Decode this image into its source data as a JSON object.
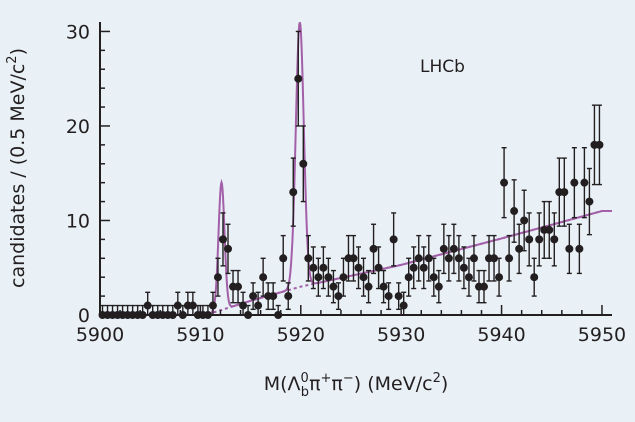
{
  "chart_data": {
    "type": "scatter",
    "experiment_label": "LHCb",
    "xlabel": "M(Λ⁰bπ⁺π⁻) (MeV/c²)",
    "xlabel_parts": {
      "prefix": "M(Λ",
      "sup": "0",
      "sub": "b",
      "mid": "π",
      "plus": "+",
      "pi2": "π",
      "minus": "−",
      "suffix": ") (MeV/c",
      "sq": "2",
      "close": ")"
    },
    "ylabel": "candidates / (0.5 MeV/c²)",
    "ylabel_parts": {
      "main": "candidates / (0.5 MeV/c",
      "sq": "2",
      "close": ")"
    },
    "xlim": [
      5900,
      5951
    ],
    "ylim": [
      0,
      31
    ],
    "x_ticks": [
      "5900",
      "5910",
      "5920",
      "5930",
      "5940",
      "5950"
    ],
    "y_ticks": [
      "0",
      "10",
      "20",
      "30"
    ],
    "grid": false,
    "colors": {
      "fit": "#a35fa8",
      "points": "#231f20",
      "background": "#e9f1f6"
    },
    "points": [
      {
        "x": 5900.25,
        "y": 0,
        "err": 1
      },
      {
        "x": 5900.75,
        "y": 0,
        "err": 1
      },
      {
        "x": 5901.25,
        "y": 0,
        "err": 1
      },
      {
        "x": 5901.75,
        "y": 0,
        "err": 1
      },
      {
        "x": 5902.25,
        "y": 0,
        "err": 1
      },
      {
        "x": 5902.75,
        "y": 0,
        "err": 1
      },
      {
        "x": 5903.25,
        "y": 0,
        "err": 1
      },
      {
        "x": 5903.75,
        "y": 0,
        "err": 1
      },
      {
        "x": 5904.25,
        "y": 0,
        "err": 1
      },
      {
        "x": 5904.75,
        "y": 1,
        "err": 1.4
      },
      {
        "x": 5905.25,
        "y": 0,
        "err": 1
      },
      {
        "x": 5905.75,
        "y": 0,
        "err": 1
      },
      {
        "x": 5906.25,
        "y": 0,
        "err": 1
      },
      {
        "x": 5906.75,
        "y": 0,
        "err": 1
      },
      {
        "x": 5907.25,
        "y": 0,
        "err": 1
      },
      {
        "x": 5907.75,
        "y": 1,
        "err": 1.4
      },
      {
        "x": 5908.25,
        "y": 0,
        "err": 1
      },
      {
        "x": 5908.75,
        "y": 1,
        "err": 1.4
      },
      {
        "x": 5909.25,
        "y": 1,
        "err": 1.4
      },
      {
        "x": 5909.75,
        "y": 0,
        "err": 1
      },
      {
        "x": 5910.25,
        "y": 0,
        "err": 1
      },
      {
        "x": 5910.75,
        "y": 0,
        "err": 1
      },
      {
        "x": 5911.25,
        "y": 1,
        "err": 1.4
      },
      {
        "x": 5911.75,
        "y": 4,
        "err": 2
      },
      {
        "x": 5912.25,
        "y": 8,
        "err": 2.8
      },
      {
        "x": 5912.75,
        "y": 7,
        "err": 2.6
      },
      {
        "x": 5913.25,
        "y": 3,
        "err": 1.7
      },
      {
        "x": 5913.75,
        "y": 3,
        "err": 1.7
      },
      {
        "x": 5914.25,
        "y": 1,
        "err": 1.4
      },
      {
        "x": 5914.75,
        "y": 0,
        "err": 1
      },
      {
        "x": 5915.25,
        "y": 2,
        "err": 1.4
      },
      {
        "x": 5915.75,
        "y": 1,
        "err": 1.4
      },
      {
        "x": 5916.25,
        "y": 4,
        "err": 2
      },
      {
        "x": 5916.75,
        "y": 2,
        "err": 1.4
      },
      {
        "x": 5917.25,
        "y": 2,
        "err": 1.4
      },
      {
        "x": 5917.75,
        "y": 0,
        "err": 1
      },
      {
        "x": 5918.25,
        "y": 6,
        "err": 2.4
      },
      {
        "x": 5918.75,
        "y": 2,
        "err": 1.4
      },
      {
        "x": 5919.25,
        "y": 13,
        "err": 3.6
      },
      {
        "x": 5919.75,
        "y": 25,
        "err": 5
      },
      {
        "x": 5920.25,
        "y": 16,
        "err": 4
      },
      {
        "x": 5920.75,
        "y": 6,
        "err": 2.4
      },
      {
        "x": 5921.25,
        "y": 5,
        "err": 2.2
      },
      {
        "x": 5921.75,
        "y": 4,
        "err": 2
      },
      {
        "x": 5922.25,
        "y": 5,
        "err": 2.2
      },
      {
        "x": 5922.75,
        "y": 4,
        "err": 2
      },
      {
        "x": 5923.25,
        "y": 3,
        "err": 1.7
      },
      {
        "x": 5923.75,
        "y": 2,
        "err": 1.4
      },
      {
        "x": 5924.25,
        "y": 4,
        "err": 2
      },
      {
        "x": 5924.75,
        "y": 6,
        "err": 2.4
      },
      {
        "x": 5925.25,
        "y": 6,
        "err": 2.4
      },
      {
        "x": 5925.75,
        "y": 5,
        "err": 2.2
      },
      {
        "x": 5926.25,
        "y": 4,
        "err": 2
      },
      {
        "x": 5926.75,
        "y": 3,
        "err": 1.7
      },
      {
        "x": 5927.25,
        "y": 7,
        "err": 2.6
      },
      {
        "x": 5927.75,
        "y": 5,
        "err": 2.2
      },
      {
        "x": 5928.25,
        "y": 3,
        "err": 1.7
      },
      {
        "x": 5928.75,
        "y": 2,
        "err": 1.4
      },
      {
        "x": 5929.25,
        "y": 8,
        "err": 2.8
      },
      {
        "x": 5929.75,
        "y": 2,
        "err": 1.4
      },
      {
        "x": 5930.25,
        "y": 1,
        "err": 1.4
      },
      {
        "x": 5930.75,
        "y": 4,
        "err": 2
      },
      {
        "x": 5931.25,
        "y": 5,
        "err": 2.2
      },
      {
        "x": 5931.75,
        "y": 6,
        "err": 2.4
      },
      {
        "x": 5932.25,
        "y": 5,
        "err": 2.2
      },
      {
        "x": 5932.75,
        "y": 6,
        "err": 2.4
      },
      {
        "x": 5933.25,
        "y": 4,
        "err": 2
      },
      {
        "x": 5933.75,
        "y": 3,
        "err": 1.7
      },
      {
        "x": 5934.25,
        "y": 7,
        "err": 2.6
      },
      {
        "x": 5934.75,
        "y": 6,
        "err": 2.4
      },
      {
        "x": 5935.25,
        "y": 7,
        "err": 2.6
      },
      {
        "x": 5935.75,
        "y": 6,
        "err": 2.4
      },
      {
        "x": 5936.25,
        "y": 5,
        "err": 2.2
      },
      {
        "x": 5936.75,
        "y": 4,
        "err": 2
      },
      {
        "x": 5937.25,
        "y": 6,
        "err": 2.4
      },
      {
        "x": 5937.75,
        "y": 3,
        "err": 1.7
      },
      {
        "x": 5938.25,
        "y": 3,
        "err": 1.7
      },
      {
        "x": 5938.75,
        "y": 6,
        "err": 2.4
      },
      {
        "x": 5939.25,
        "y": 6,
        "err": 2.4
      },
      {
        "x": 5939.75,
        "y": 4,
        "err": 2
      },
      {
        "x": 5940.25,
        "y": 14,
        "err": 3.7
      },
      {
        "x": 5940.75,
        "y": 6,
        "err": 2.4
      },
      {
        "x": 5941.25,
        "y": 11,
        "err": 3.3
      },
      {
        "x": 5941.75,
        "y": 7,
        "err": 2.6
      },
      {
        "x": 5942.25,
        "y": 10,
        "err": 3.2
      },
      {
        "x": 5942.75,
        "y": 8,
        "err": 2.8
      },
      {
        "x": 5943.25,
        "y": 4,
        "err": 2
      },
      {
        "x": 5943.75,
        "y": 8,
        "err": 2.8
      },
      {
        "x": 5944.25,
        "y": 9,
        "err": 3
      },
      {
        "x": 5944.75,
        "y": 9,
        "err": 3
      },
      {
        "x": 5945.25,
        "y": 8,
        "err": 2.8
      },
      {
        "x": 5945.75,
        "y": 13,
        "err": 3.6
      },
      {
        "x": 5946.25,
        "y": 13,
        "err": 3.6
      },
      {
        "x": 5946.75,
        "y": 7,
        "err": 2.6
      },
      {
        "x": 5947.25,
        "y": 14,
        "err": 3.7
      },
      {
        "x": 5947.75,
        "y": 7,
        "err": 2.6
      },
      {
        "x": 5948.25,
        "y": 14,
        "err": 3.7
      },
      {
        "x": 5948.75,
        "y": 12,
        "err": 3.5
      },
      {
        "x": 5949.25,
        "y": 18,
        "err": 4.2
      },
      {
        "x": 5949.75,
        "y": 18,
        "err": 4.2
      }
    ],
    "background_fit": {
      "threshold": 5910.5,
      "values": [
        [
          5910.5,
          0
        ],
        [
          5915,
          1.5
        ],
        [
          5920,
          3
        ],
        [
          5930,
          5.3
        ],
        [
          5940,
          8.1
        ],
        [
          5950,
          11
        ]
      ]
    },
    "peaks": [
      {
        "mass": 5912.1,
        "height": 13.5,
        "width": 0.3
      },
      {
        "mass": 5919.9,
        "height": 28,
        "width": 0.4
      }
    ]
  }
}
